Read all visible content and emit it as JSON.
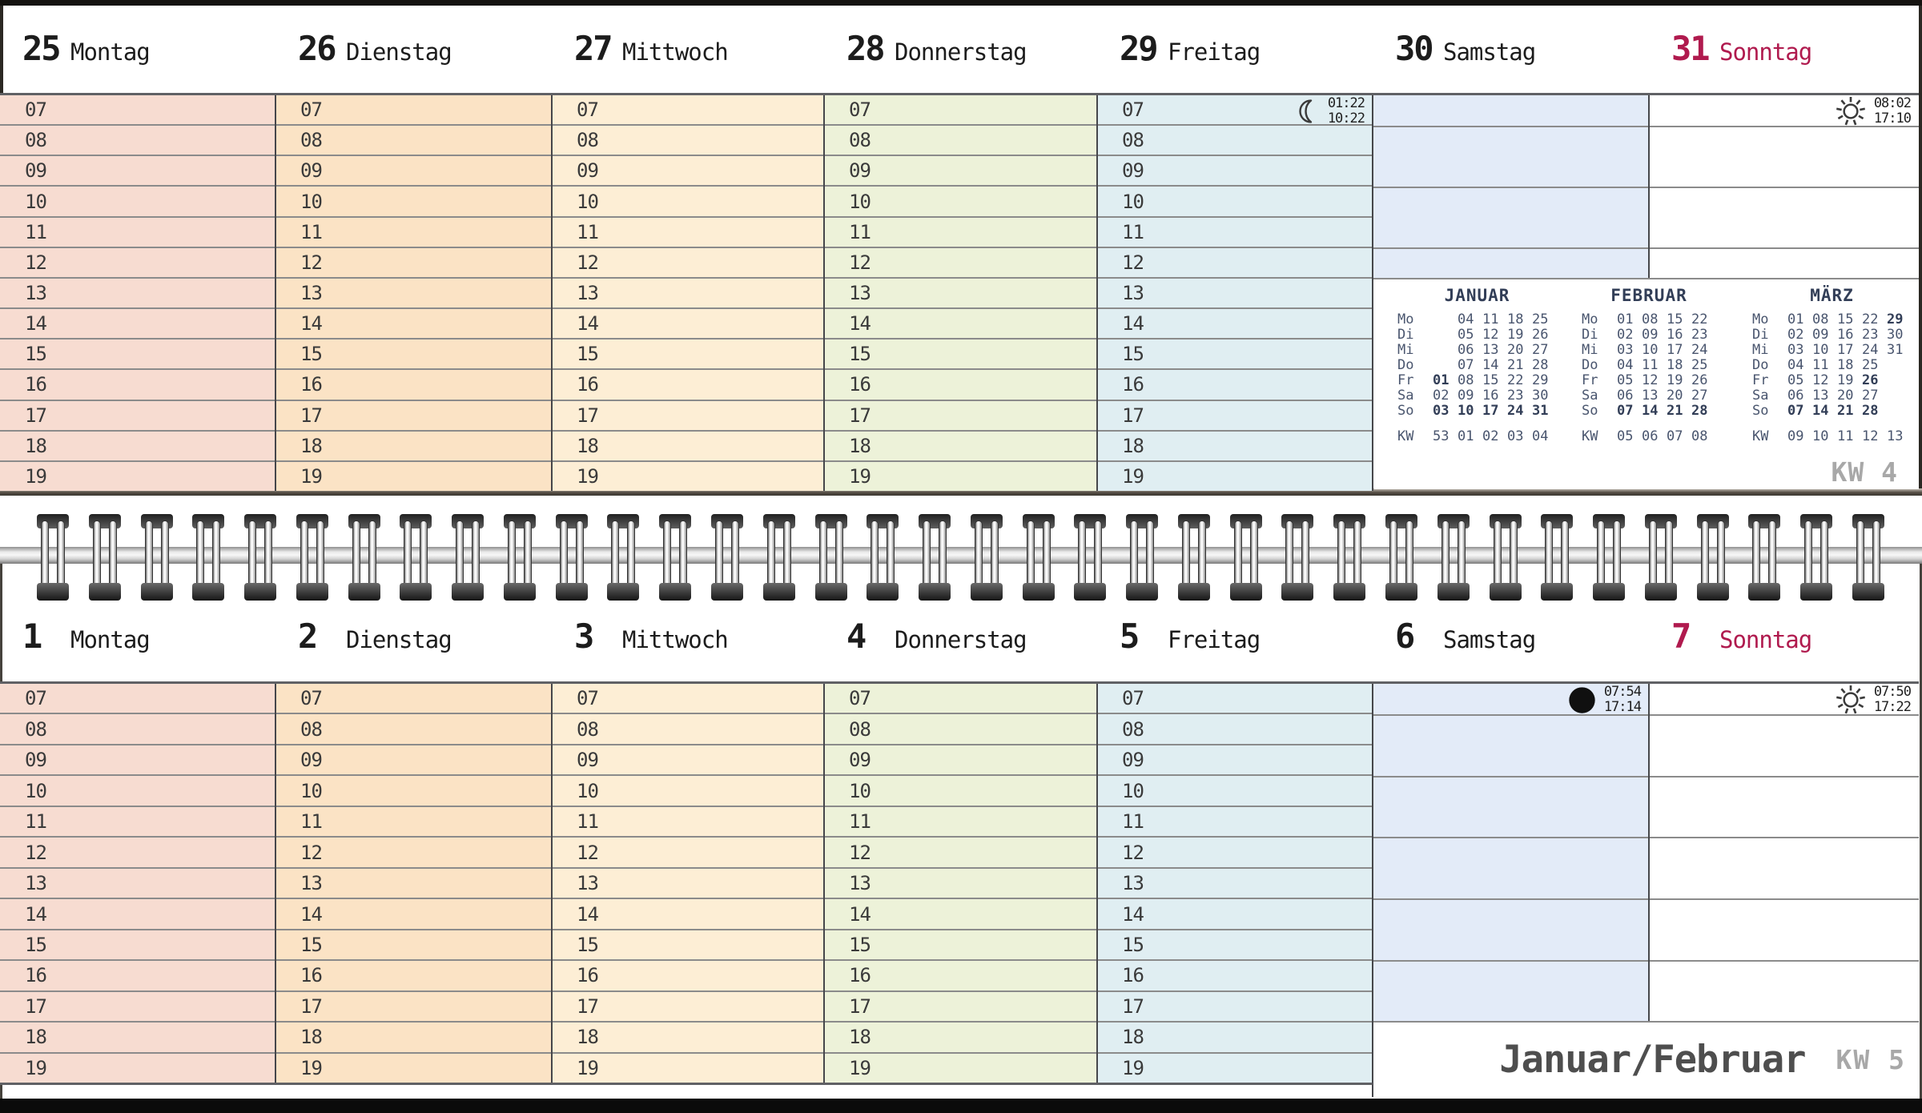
{
  "hours": [
    "07",
    "08",
    "09",
    "10",
    "11",
    "12",
    "13",
    "14",
    "15",
    "16",
    "17",
    "18",
    "19"
  ],
  "page_top": {
    "kw_label": "KW 4",
    "days": [
      {
        "date": "25",
        "name": "Montag"
      },
      {
        "date": "26",
        "name": "Dienstag"
      },
      {
        "date": "27",
        "name": "Mittwoch"
      },
      {
        "date": "28",
        "name": "Donnerstag"
      },
      {
        "date": "29",
        "name": "Freitag"
      },
      {
        "date": "30",
        "name": "Samstag"
      },
      {
        "date": "31",
        "name": "Sonntag",
        "highlight": true
      }
    ],
    "annotations": [
      {
        "day_index": 4,
        "icon": "crescent-moon-icon",
        "times": [
          "01:22",
          "10:22"
        ]
      },
      {
        "day_index": 6,
        "icon": "sun-icon",
        "times": [
          "08:02",
          "17:10"
        ]
      }
    ],
    "mini_calendars": [
      {
        "title": "JANUAR",
        "rows": [
          {
            "label": "Mo",
            "cells": [
              "",
              "04",
              "11",
              "18",
              "25"
            ],
            "bold": []
          },
          {
            "label": "Di",
            "cells": [
              "",
              "05",
              "12",
              "19",
              "26"
            ],
            "bold": []
          },
          {
            "label": "Mi",
            "cells": [
              "",
              "06",
              "13",
              "20",
              "27"
            ],
            "bold": []
          },
          {
            "label": "Do",
            "cells": [
              "",
              "07",
              "14",
              "21",
              "28"
            ],
            "bold": []
          },
          {
            "label": "Fr",
            "cells": [
              "01",
              "08",
              "15",
              "22",
              "29"
            ],
            "bold": [
              0
            ]
          },
          {
            "label": "Sa",
            "cells": [
              "02",
              "09",
              "16",
              "23",
              "30"
            ],
            "bold": []
          },
          {
            "label": "So",
            "cells": [
              "03",
              "10",
              "17",
              "24",
              "31"
            ],
            "bold": [
              0,
              1,
              2,
              3,
              4
            ]
          },
          {
            "label": "KW",
            "cells": [
              "53",
              "01",
              "02",
              "03",
              "04"
            ],
            "bold": [],
            "kw": true
          }
        ]
      },
      {
        "title": "FEBRUAR",
        "rows": [
          {
            "label": "Mo",
            "cells": [
              "01",
              "08",
              "15",
              "22"
            ],
            "bold": []
          },
          {
            "label": "Di",
            "cells": [
              "02",
              "09",
              "16",
              "23"
            ],
            "bold": []
          },
          {
            "label": "Mi",
            "cells": [
              "03",
              "10",
              "17",
              "24"
            ],
            "bold": []
          },
          {
            "label": "Do",
            "cells": [
              "04",
              "11",
              "18",
              "25"
            ],
            "bold": []
          },
          {
            "label": "Fr",
            "cells": [
              "05",
              "12",
              "19",
              "26"
            ],
            "bold": []
          },
          {
            "label": "Sa",
            "cells": [
              "06",
              "13",
              "20",
              "27"
            ],
            "bold": []
          },
          {
            "label": "So",
            "cells": [
              "07",
              "14",
              "21",
              "28"
            ],
            "bold": [
              0,
              1,
              2,
              3
            ]
          },
          {
            "label": "KW",
            "cells": [
              "05",
              "06",
              "07",
              "08"
            ],
            "bold": [],
            "kw": true
          }
        ]
      },
      {
        "title": "MÄRZ",
        "rows": [
          {
            "label": "Mo",
            "cells": [
              "01",
              "08",
              "15",
              "22",
              "29"
            ],
            "bold": [
              4
            ]
          },
          {
            "label": "Di",
            "cells": [
              "02",
              "09",
              "16",
              "23",
              "30"
            ],
            "bold": []
          },
          {
            "label": "Mi",
            "cells": [
              "03",
              "10",
              "17",
              "24",
              "31"
            ],
            "bold": []
          },
          {
            "label": "Do",
            "cells": [
              "04",
              "11",
              "18",
              "25",
              ""
            ],
            "bold": []
          },
          {
            "label": "Fr",
            "cells": [
              "05",
              "12",
              "19",
              "26",
              ""
            ],
            "bold": [
              3
            ]
          },
          {
            "label": "Sa",
            "cells": [
              "06",
              "13",
              "20",
              "27",
              ""
            ],
            "bold": []
          },
          {
            "label": "So",
            "cells": [
              "07",
              "14",
              "21",
              "28",
              ""
            ],
            "bold": [
              0,
              1,
              2,
              3
            ]
          },
          {
            "label": "KW",
            "cells": [
              "09",
              "10",
              "11",
              "12",
              "13"
            ],
            "bold": [],
            "kw": true
          }
        ]
      }
    ]
  },
  "page_bottom": {
    "days": [
      {
        "date": "1",
        "name": "Montag"
      },
      {
        "date": "2",
        "name": "Dienstag"
      },
      {
        "date": "3",
        "name": "Mittwoch"
      },
      {
        "date": "4",
        "name": "Donnerstag"
      },
      {
        "date": "5",
        "name": "Freitag"
      },
      {
        "date": "6",
        "name": "Samstag"
      },
      {
        "date": "7",
        "name": "Sonntag",
        "highlight": true
      }
    ],
    "annotations": [
      {
        "day_index": 5,
        "icon": "new-moon-icon",
        "times": [
          "07:54",
          "17:14"
        ]
      },
      {
        "day_index": 6,
        "icon": "sun-icon",
        "times": [
          "07:50",
          "17:22"
        ]
      }
    ],
    "footer": {
      "month_label": "Januar/Februar",
      "kw_label": "KW 5"
    }
  },
  "colors": {
    "sunday_accent": "#b01a4e",
    "monday_bg": "#f7dcd1",
    "tuesday_bg": "#fbe3c5",
    "wednesday_bg": "#fdeed5",
    "thursday_bg": "#edf2d9",
    "friday_bg": "#e0eef2",
    "saturday_bg": "#e3ebf8",
    "sunday_bg": "#ffffff",
    "row_line": "#8b8b8b",
    "column_line": "#46474b",
    "grid_strong_line": "#606165",
    "kw_gray": "#a8a8a8",
    "footer_text": "#4e4e4e",
    "minical_text": "#49556e",
    "minical_bold": "#323e57",
    "header_text": "#1c1c1c",
    "icon_stroke": "#3b3b3b"
  }
}
